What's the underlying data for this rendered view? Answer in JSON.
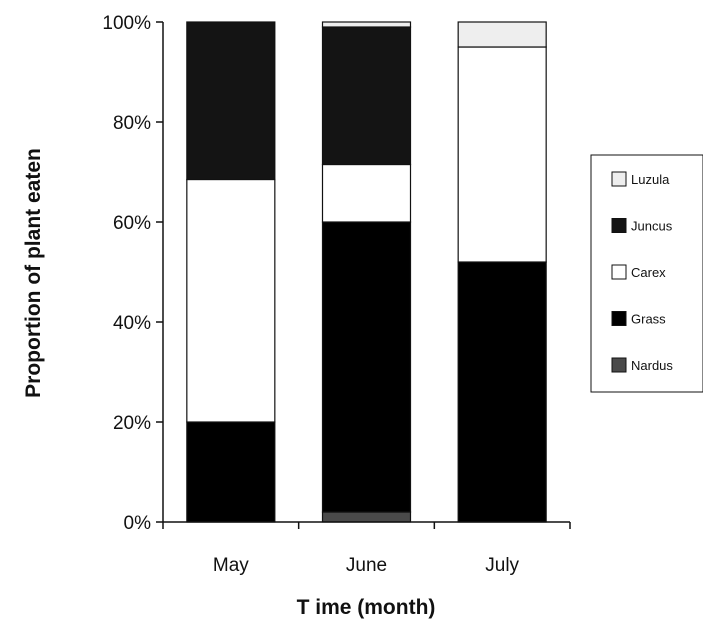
{
  "chart_data": {
    "type": "bar",
    "stacked": true,
    "percent": true,
    "categories": [
      "May",
      "June",
      "July"
    ],
    "series": [
      {
        "name": "Nardus",
        "color": "#4a4a4a",
        "values": [
          0,
          2,
          0
        ]
      },
      {
        "name": "Grass",
        "color": "#000000",
        "values": [
          20,
          58,
          52
        ]
      },
      {
        "name": "Carex",
        "color": "#ffffff",
        "values": [
          48.5,
          11.5,
          43
        ]
      },
      {
        "name": "Juncus",
        "color": "#141414",
        "values": [
          31.5,
          27.5,
          0
        ]
      },
      {
        "name": "Luzula",
        "color": "#eeeeee",
        "values": [
          0,
          1,
          5
        ]
      }
    ],
    "legend_order": [
      "Luzula",
      "Juncus",
      "Carex",
      "Grass",
      "Nardus"
    ],
    "legend_labels": [
      "Luzula",
      "Juncus",
      "Carex",
      "Grass",
      "Nardus"
    ],
    "yticks": [
      "0%",
      "20%",
      "40%",
      "60%",
      "80%",
      "100%"
    ],
    "ylim": [
      0,
      100
    ],
    "xlabel": "T ime (month)",
    "ylabel": "Proportion of plant eaten",
    "legend_position": "right",
    "grid": false
  }
}
